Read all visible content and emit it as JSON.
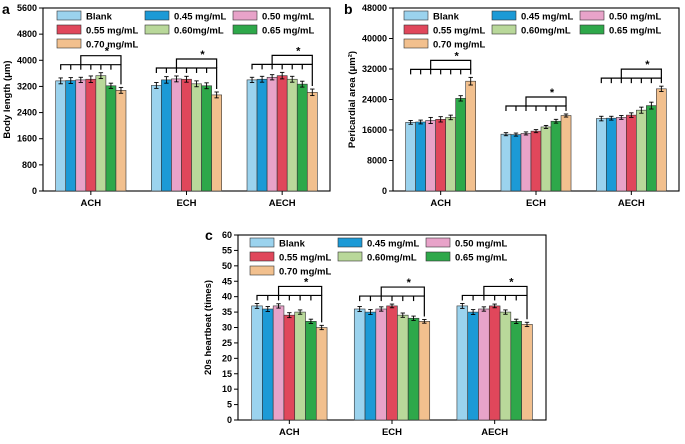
{
  "figure": {
    "groups": [
      "Blank",
      "0.45 mg/mL",
      "0.50 mg/mL",
      "0.55 mg/mL",
      "0.60mg/mL",
      "0.65 mg/mL",
      "0.70 mg/mL"
    ],
    "colors": [
      "#9bd3ee",
      "#1c9ad6",
      "#e8a3c9",
      "#e0475b",
      "#b9d89a",
      "#2ea84a",
      "#f2c08e"
    ],
    "legend_order": [
      0,
      1,
      2,
      3,
      4,
      5,
      6
    ],
    "significance_symbol": "*"
  },
  "chart_data": [
    {
      "panel": "a",
      "type": "bar",
      "title": "",
      "categories": [
        "ACH",
        "ECH",
        "AECH"
      ],
      "xlabel": "",
      "ylabel": "Body length (μm)",
      "ylim": [
        0,
        5600
      ],
      "yticks": [
        0,
        800,
        1600,
        2400,
        3200,
        4000,
        4800,
        5600
      ],
      "series": [
        {
          "name": "Blank",
          "values": [
            3370,
            3230,
            3400
          ],
          "errors": [
            90,
            90,
            80
          ]
        },
        {
          "name": "0.45 mg/mL",
          "values": [
            3380,
            3400,
            3420
          ],
          "errors": [
            90,
            100,
            90
          ]
        },
        {
          "name": "0.50 mg/mL",
          "values": [
            3400,
            3430,
            3480
          ],
          "errors": [
            80,
            90,
            80
          ]
        },
        {
          "name": "0.55 mg/mL",
          "values": [
            3420,
            3420,
            3530
          ],
          "errors": [
            100,
            90,
            100
          ]
        },
        {
          "name": "0.60mg/mL",
          "values": [
            3530,
            3280,
            3420
          ],
          "errors": [
            90,
            90,
            90
          ]
        },
        {
          "name": "0.65 mg/mL",
          "values": [
            3220,
            3220,
            3270
          ],
          "errors": [
            80,
            90,
            90
          ]
        },
        {
          "name": "0.70 mg/mL",
          "values": [
            3080,
            2940,
            3020
          ],
          "errors": [
            90,
            90,
            100
          ]
        }
      ]
    },
    {
      "panel": "b",
      "type": "bar",
      "title": "",
      "categories": [
        "ACH",
        "ECH",
        "AECH"
      ],
      "xlabel": "",
      "ylabel": "Pericardial area (μm²)",
      "ylim": [
        0,
        48000
      ],
      "yticks": [
        0,
        8000,
        16000,
        24000,
        32000,
        40000,
        48000
      ],
      "series": [
        {
          "name": "Blank",
          "values": [
            18000,
            14900,
            19000
          ],
          "errors": [
            500,
            400,
            600
          ]
        },
        {
          "name": "0.45 mg/mL",
          "values": [
            18100,
            14800,
            19100
          ],
          "errors": [
            500,
            400,
            500
          ]
        },
        {
          "name": "0.50 mg/mL",
          "values": [
            18500,
            15100,
            19300
          ],
          "errors": [
            800,
            400,
            500
          ]
        },
        {
          "name": "0.55 mg/mL",
          "values": [
            18800,
            15700,
            19900
          ],
          "errors": [
            700,
            400,
            600
          ]
        },
        {
          "name": "0.60mg/mL",
          "values": [
            19300,
            16800,
            21200
          ],
          "errors": [
            600,
            400,
            800
          ]
        },
        {
          "name": "0.65 mg/mL",
          "values": [
            24300,
            18300,
            22400
          ],
          "errors": [
            700,
            500,
            900
          ]
        },
        {
          "name": "0.70 mg/mL",
          "values": [
            28800,
            19800,
            26800
          ],
          "errors": [
            1000,
            400,
            700
          ]
        }
      ]
    },
    {
      "panel": "c",
      "type": "bar",
      "title": "",
      "categories": [
        "ACH",
        "ECH",
        "AECH"
      ],
      "xlabel": "",
      "ylabel": "20s heartbeat (times)",
      "ylim": [
        0,
        60
      ],
      "yticks": [
        0,
        5,
        10,
        15,
        20,
        25,
        30,
        35,
        40,
        45,
        50,
        55,
        60
      ],
      "series": [
        {
          "name": "Blank",
          "values": [
            37,
            36,
            37
          ],
          "errors": [
            0.8,
            0.8,
            0.8
          ]
        },
        {
          "name": "0.45 mg/mL",
          "values": [
            36,
            35,
            35
          ],
          "errors": [
            0.8,
            0.8,
            0.8
          ]
        },
        {
          "name": "0.50 mg/mL",
          "values": [
            37,
            36,
            36
          ],
          "errors": [
            0.7,
            0.7,
            0.7
          ]
        },
        {
          "name": "0.55 mg/mL",
          "values": [
            34,
            37,
            37
          ],
          "errors": [
            0.8,
            0.6,
            0.6
          ]
        },
        {
          "name": "0.60mg/mL",
          "values": [
            35,
            34,
            35
          ],
          "errors": [
            0.7,
            0.7,
            0.7
          ]
        },
        {
          "name": "0.65 mg/mL",
          "values": [
            32,
            33,
            32
          ],
          "errors": [
            0.7,
            0.7,
            0.7
          ]
        },
        {
          "name": "0.70 mg/mL",
          "values": [
            30,
            32,
            31
          ],
          "errors": [
            0.7,
            0.6,
            0.7
          ]
        }
      ]
    }
  ]
}
